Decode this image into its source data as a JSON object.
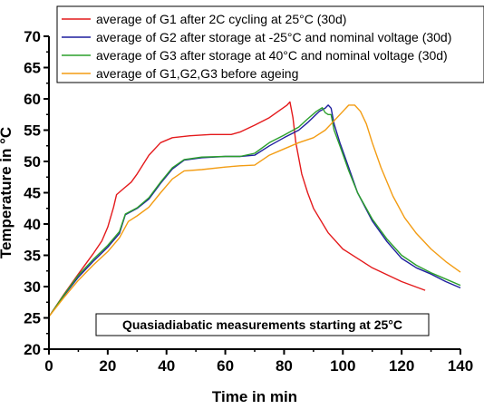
{
  "chart_data": {
    "type": "line",
    "xlabel": "Time in min",
    "ylabel": "Temperature in °C",
    "xlim": [
      0,
      140
    ],
    "ylim": [
      20,
      70
    ],
    "xticks": [
      "0",
      "20",
      "40",
      "60",
      "80",
      "100",
      "120",
      "140"
    ],
    "yticks": [
      "20",
      "25",
      "30",
      "35",
      "40",
      "45",
      "50",
      "55",
      "60",
      "65",
      "70"
    ],
    "grid": false,
    "legend_position": "top",
    "annotation": "Quasiadiabatic measurements starting at 25°C",
    "series": [
      {
        "name": "average of G1 after 2C cycling at 25°C (30d)",
        "color": "#e41a1c",
        "points": [
          [
            0,
            25.2
          ],
          [
            5,
            28.7
          ],
          [
            10,
            32
          ],
          [
            15,
            35.2
          ],
          [
            18,
            37.3
          ],
          [
            20,
            39.5
          ],
          [
            22,
            42.7
          ],
          [
            23,
            44.7
          ],
          [
            25,
            45.5
          ],
          [
            28,
            46.7
          ],
          [
            30,
            48
          ],
          [
            34,
            51
          ],
          [
            38,
            53
          ],
          [
            42,
            53.8
          ],
          [
            48,
            54.1
          ],
          [
            55,
            54.3
          ],
          [
            62,
            54.3
          ],
          [
            65,
            54.7
          ],
          [
            70,
            55.8
          ],
          [
            75,
            57
          ],
          [
            78,
            58
          ],
          [
            81,
            59
          ],
          [
            82,
            59.5
          ],
          [
            83,
            57
          ],
          [
            84,
            53
          ],
          [
            86,
            48
          ],
          [
            88,
            45
          ],
          [
            90,
            42.5
          ],
          [
            95,
            38.6
          ],
          [
            100,
            36
          ],
          [
            110,
            33
          ],
          [
            120,
            30.8
          ],
          [
            128,
            29.4
          ]
        ]
      },
      {
        "name": "average of G2 after storage at -25°C and nominal voltage (30d)",
        "color": "#1f1f9e",
        "points": [
          [
            0,
            25.2
          ],
          [
            5,
            28.5
          ],
          [
            10,
            31.5
          ],
          [
            15,
            34
          ],
          [
            20,
            36.3
          ],
          [
            24,
            38.5
          ],
          [
            26,
            41.5
          ],
          [
            30,
            42.5
          ],
          [
            34,
            44
          ],
          [
            38,
            46.5
          ],
          [
            42,
            48.8
          ],
          [
            46,
            50.2
          ],
          [
            52,
            50.6
          ],
          [
            60,
            50.8
          ],
          [
            65,
            50.8
          ],
          [
            70,
            51
          ],
          [
            75,
            52.5
          ],
          [
            80,
            53.8
          ],
          [
            85,
            55
          ],
          [
            88,
            56.2
          ],
          [
            92,
            58
          ],
          [
            94,
            58.5
          ],
          [
            95,
            59
          ],
          [
            96,
            58.5
          ],
          [
            97,
            56
          ],
          [
            99,
            53
          ],
          [
            102,
            49
          ],
          [
            105,
            45
          ],
          [
            110,
            40.5
          ],
          [
            115,
            37.2
          ],
          [
            120,
            34.5
          ],
          [
            125,
            33
          ],
          [
            130,
            32
          ],
          [
            135,
            30.8
          ],
          [
            140,
            29.8
          ]
        ]
      },
      {
        "name": "average of G3 after storage at 40°C and nominal voltage (30d)",
        "color": "#2ca02c",
        "points": [
          [
            0,
            25.2
          ],
          [
            5,
            28.6
          ],
          [
            10,
            31.8
          ],
          [
            15,
            34.3
          ],
          [
            20,
            36.6
          ],
          [
            24,
            38.8
          ],
          [
            26,
            41.6
          ],
          [
            30,
            42.6
          ],
          [
            34,
            44.2
          ],
          [
            38,
            46.7
          ],
          [
            42,
            49
          ],
          [
            46,
            50.3
          ],
          [
            52,
            50.7
          ],
          [
            60,
            50.8
          ],
          [
            65,
            50.8
          ],
          [
            70,
            51.3
          ],
          [
            75,
            53
          ],
          [
            80,
            54.2
          ],
          [
            85,
            55.5
          ],
          [
            88,
            56.8
          ],
          [
            91,
            58
          ],
          [
            93,
            58.6
          ],
          [
            94,
            57.8
          ],
          [
            95,
            57.5
          ],
          [
            96,
            57.5
          ],
          [
            97,
            55
          ],
          [
            99,
            52.5
          ],
          [
            102,
            48.5
          ],
          [
            105,
            45
          ],
          [
            110,
            40.8
          ],
          [
            115,
            37.6
          ],
          [
            120,
            35
          ],
          [
            125,
            33.4
          ],
          [
            130,
            32.2
          ],
          [
            135,
            31.2
          ],
          [
            140,
            30.2
          ]
        ]
      },
      {
        "name": "average of G1,G2,G3 before ageing",
        "color": "#f39c12",
        "points": [
          [
            0,
            25.2
          ],
          [
            5,
            28.2
          ],
          [
            10,
            31
          ],
          [
            15,
            33.4
          ],
          [
            20,
            35.6
          ],
          [
            24,
            37.8
          ],
          [
            27,
            40.4
          ],
          [
            30,
            41.3
          ],
          [
            34,
            42.7
          ],
          [
            38,
            45
          ],
          [
            42,
            47.2
          ],
          [
            46,
            48.5
          ],
          [
            52,
            48.7
          ],
          [
            60,
            49.1
          ],
          [
            65,
            49.3
          ],
          [
            70,
            49.4
          ],
          [
            75,
            51
          ],
          [
            80,
            52
          ],
          [
            85,
            53
          ],
          [
            90,
            53.8
          ],
          [
            94,
            55
          ],
          [
            97,
            56.5
          ],
          [
            100,
            58
          ],
          [
            102,
            59
          ],
          [
            104,
            59
          ],
          [
            106,
            58
          ],
          [
            108,
            56
          ],
          [
            110,
            53
          ],
          [
            113,
            49
          ],
          [
            117,
            44.5
          ],
          [
            121,
            41
          ],
          [
            125,
            38.5
          ],
          [
            130,
            36
          ],
          [
            135,
            34
          ],
          [
            140,
            32.3
          ]
        ]
      }
    ]
  }
}
